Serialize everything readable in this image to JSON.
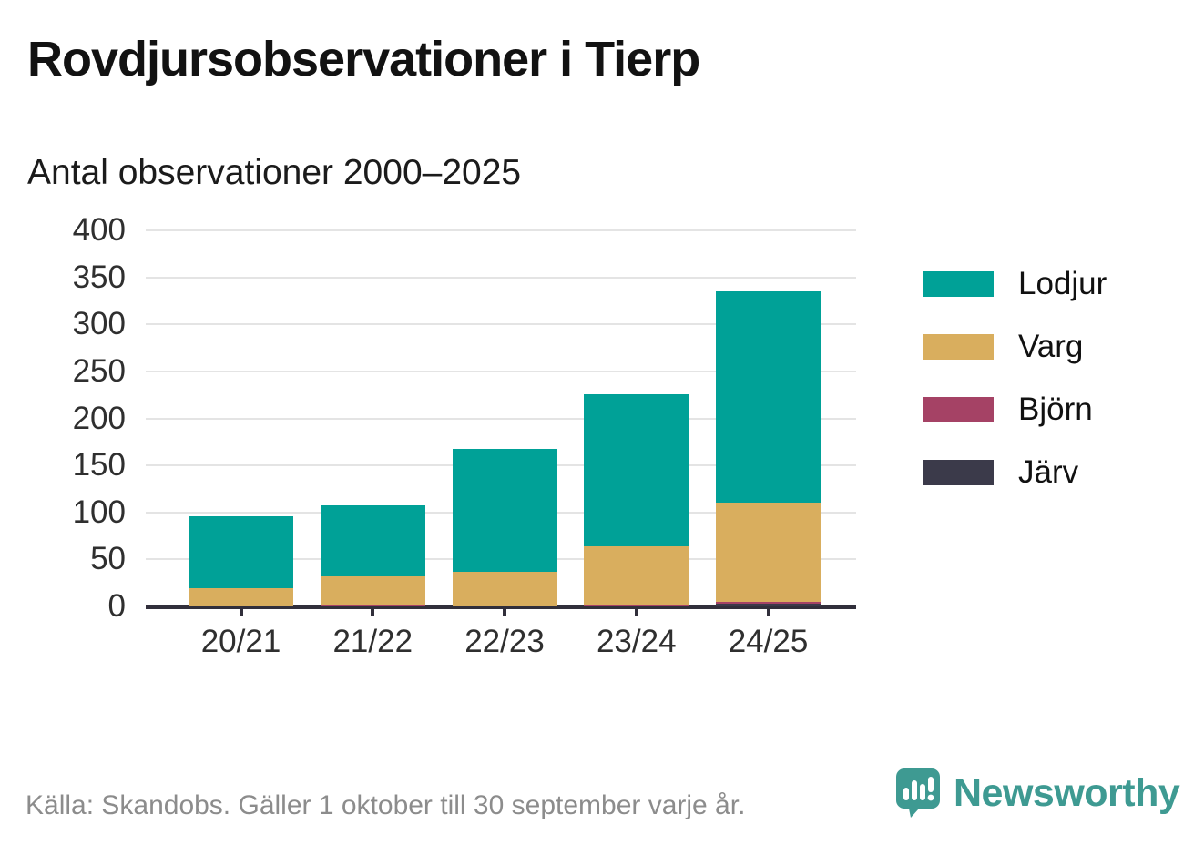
{
  "header": {
    "title": "Rovdjursobservationer i Tierp",
    "subtitle": "Antal observationer 2000–2025"
  },
  "footer": {
    "source": "Källa: Skandobs. Gäller 1 oktober till 30 september varje år.",
    "brand": "Newsworthy",
    "logo_icon": "speech-bubble-bar-chart-icon"
  },
  "colors": {
    "lodjur": "#00a197",
    "varg": "#d9ae5e",
    "bjorn": "#a54265",
    "jarv": "#3b3a4a",
    "axis": "#312f3b",
    "grid": "#e4e4e4",
    "title_text": "#121212",
    "tick_label": "#2f2f2f",
    "footer_text": "#8c8c8c",
    "brand": "#3e9a92"
  },
  "chart_data": {
    "type": "bar",
    "stacked": true,
    "title": "Antal observationer 2000–2025",
    "categories": [
      "20/21",
      "21/22",
      "22/23",
      "23/24",
      "24/25"
    ],
    "series": [
      {
        "name": "Lodjur",
        "key": "lodjur",
        "values": [
          77,
          76,
          131,
          162,
          225
        ]
      },
      {
        "name": "Varg",
        "key": "varg",
        "values": [
          18,
          30,
          36,
          62,
          105
        ]
      },
      {
        "name": "Björn",
        "key": "bjorn",
        "values": [
          1,
          2,
          1,
          2,
          2
        ]
      },
      {
        "name": "Järv",
        "key": "jarv",
        "values": [
          0,
          0,
          0,
          0,
          3
        ]
      }
    ],
    "totals": [
      96,
      108,
      168,
      226,
      335
    ],
    "stack_order_bottom_to_top": [
      "jarv",
      "bjorn",
      "varg",
      "lodjur"
    ],
    "ylim": [
      0,
      400
    ],
    "yticks": [
      0,
      50,
      100,
      150,
      200,
      250,
      300,
      350,
      400
    ],
    "grid": "horizontal",
    "legend_position": "right",
    "xlabel": "",
    "ylabel": ""
  }
}
